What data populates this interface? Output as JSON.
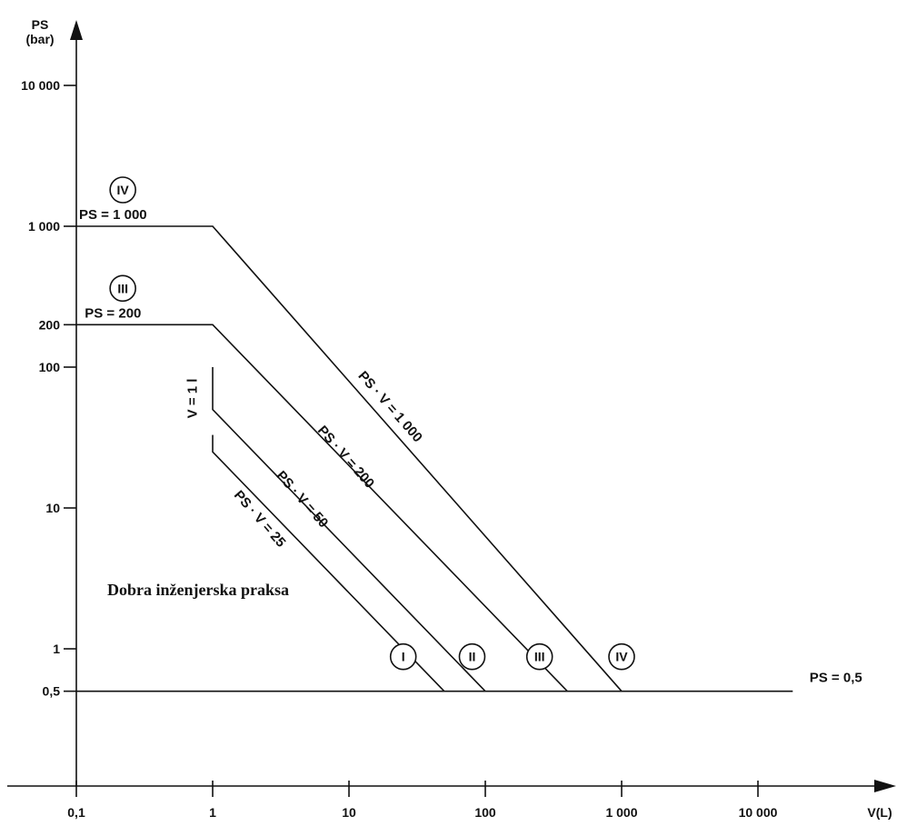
{
  "chart_data": {
    "type": "line",
    "scale": {
      "x": "log",
      "y": "log"
    },
    "grid": false,
    "x_axis": {
      "label": "V(L)",
      "ticks": [
        {
          "value": 0.1,
          "label": "0,1"
        },
        {
          "value": 1,
          "label": "1"
        },
        {
          "value": 10,
          "label": "10"
        },
        {
          "value": 100,
          "label": "100"
        },
        {
          "value": 1000,
          "label": "1 000"
        },
        {
          "value": 10000,
          "label": "10 000"
        }
      ]
    },
    "y_axis": {
      "label_line1": "PS",
      "label_line2": "(bar)",
      "ticks": [
        {
          "value": 0.5,
          "label": "0,5"
        },
        {
          "value": 1,
          "label": "1"
        },
        {
          "value": 10,
          "label": "10"
        },
        {
          "value": 100,
          "label": "100"
        },
        {
          "value": 200,
          "label": "200"
        },
        {
          "value": 1000,
          "label": "1 000"
        },
        {
          "value": 10000,
          "label": "10 000"
        }
      ]
    },
    "series": [
      {
        "name": "PS · V = 25",
        "category": "I",
        "points": [
          [
            1,
            33
          ],
          [
            1,
            25
          ],
          [
            50,
            0.5
          ]
        ]
      },
      {
        "name": "PS · V = 50",
        "category": "II",
        "points": [
          [
            1,
            100
          ],
          [
            1,
            50
          ],
          [
            100,
            0.5
          ]
        ]
      },
      {
        "name": "PS · V = 200",
        "category": "III",
        "points": [
          [
            0.1,
            200
          ],
          [
            1,
            200
          ],
          [
            400,
            0.5
          ]
        ]
      },
      {
        "name": "PS · V = 1 000",
        "category": "IV",
        "points": [
          [
            0.1,
            1000
          ],
          [
            1,
            1000
          ],
          [
            1000,
            0.5
          ]
        ]
      },
      {
        "name": "PS = 0,5",
        "points": [
          [
            0.1,
            0.5
          ],
          [
            18000,
            0.5
          ]
        ]
      }
    ],
    "series_labels": [
      {
        "text": "PS · V = 25",
        "x": 2.1,
        "y": 8
      },
      {
        "text": "PS · V = 50",
        "x": 4.3,
        "y": 11
      },
      {
        "text": "PS · V = 200",
        "x": 9,
        "y": 22
      },
      {
        "text": "PS · V = 1 000",
        "x": 19,
        "y": 50
      }
    ],
    "boundary_labels": [
      {
        "text": "PS = 1 000",
        "x": 0.21,
        "y": 1000
      },
      {
        "text": "PS = 200",
        "x": 0.21,
        "y": 200
      },
      {
        "text": "V = 1 l",
        "x": 0.95,
        "y": 60
      },
      {
        "text": "PS = 0,5",
        "x": 7000,
        "y": 0.5
      }
    ],
    "category_markers": [
      {
        "text": "IV",
        "x": 0.2,
        "y": 1000
      },
      {
        "text": "III",
        "x": 0.2,
        "y": 200
      },
      {
        "text": "I",
        "x": 25,
        "y": 0.5
      },
      {
        "text": "II",
        "x": 80,
        "y": 0.5
      },
      {
        "text": "III",
        "x": 250,
        "y": 0.5
      },
      {
        "text": "IV",
        "x": 1000,
        "y": 0.5
      }
    ],
    "region_label": "Dobra inženjerska praksa"
  }
}
